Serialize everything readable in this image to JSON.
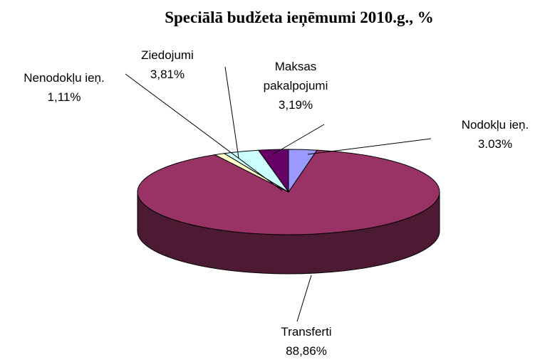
{
  "chart_data": {
    "type": "pie3d",
    "title": "Speciālā budžeta ieņēmumi 2010.g., %",
    "categories": [
      "Nodokļu ieņ.",
      "Transferti",
      "Nenodokļu ieņ.",
      "Ziedojumi",
      "Maksas pakalpojumi"
    ],
    "values": [
      3.03,
      88.86,
      1.11,
      3.81,
      3.19
    ],
    "value_labels": [
      "3.03%",
      "88,86%",
      "1,11%",
      "3,81%",
      "3,19%"
    ],
    "colors": [
      "#9999ff",
      "#993366",
      "#ffffcc",
      "#ccffff",
      "#660066"
    ]
  }
}
